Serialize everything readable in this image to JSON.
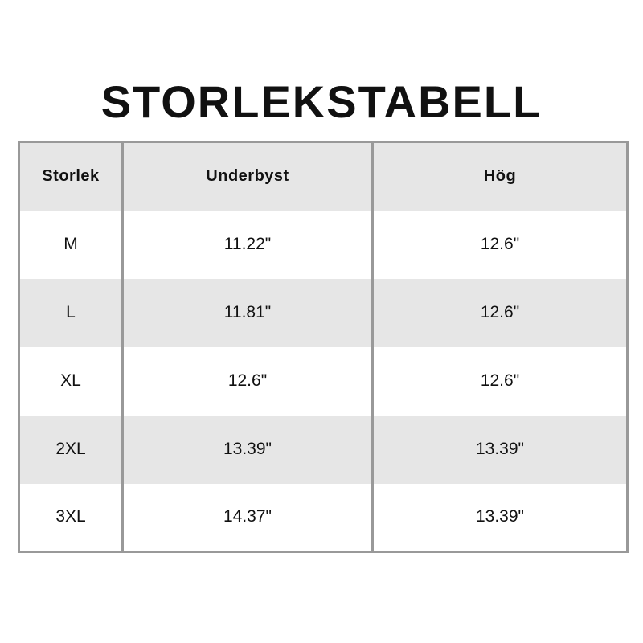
{
  "title": "STORLEKSTABELL",
  "table": {
    "headers": [
      "Storlek",
      "Underbyst",
      "Hög"
    ],
    "rows": [
      [
        "M",
        "11.22\"",
        "12.6\""
      ],
      [
        "L",
        "11.81\"",
        "12.6\""
      ],
      [
        "XL",
        "12.6\"",
        "12.6\""
      ],
      [
        "2XL",
        "13.39\"",
        "13.39\""
      ],
      [
        "3XL",
        "14.37\"",
        "13.39\""
      ]
    ]
  },
  "colors": {
    "header_bg": "#e6e6e6",
    "border": "#999999",
    "stripe": "#e6e6e6"
  }
}
